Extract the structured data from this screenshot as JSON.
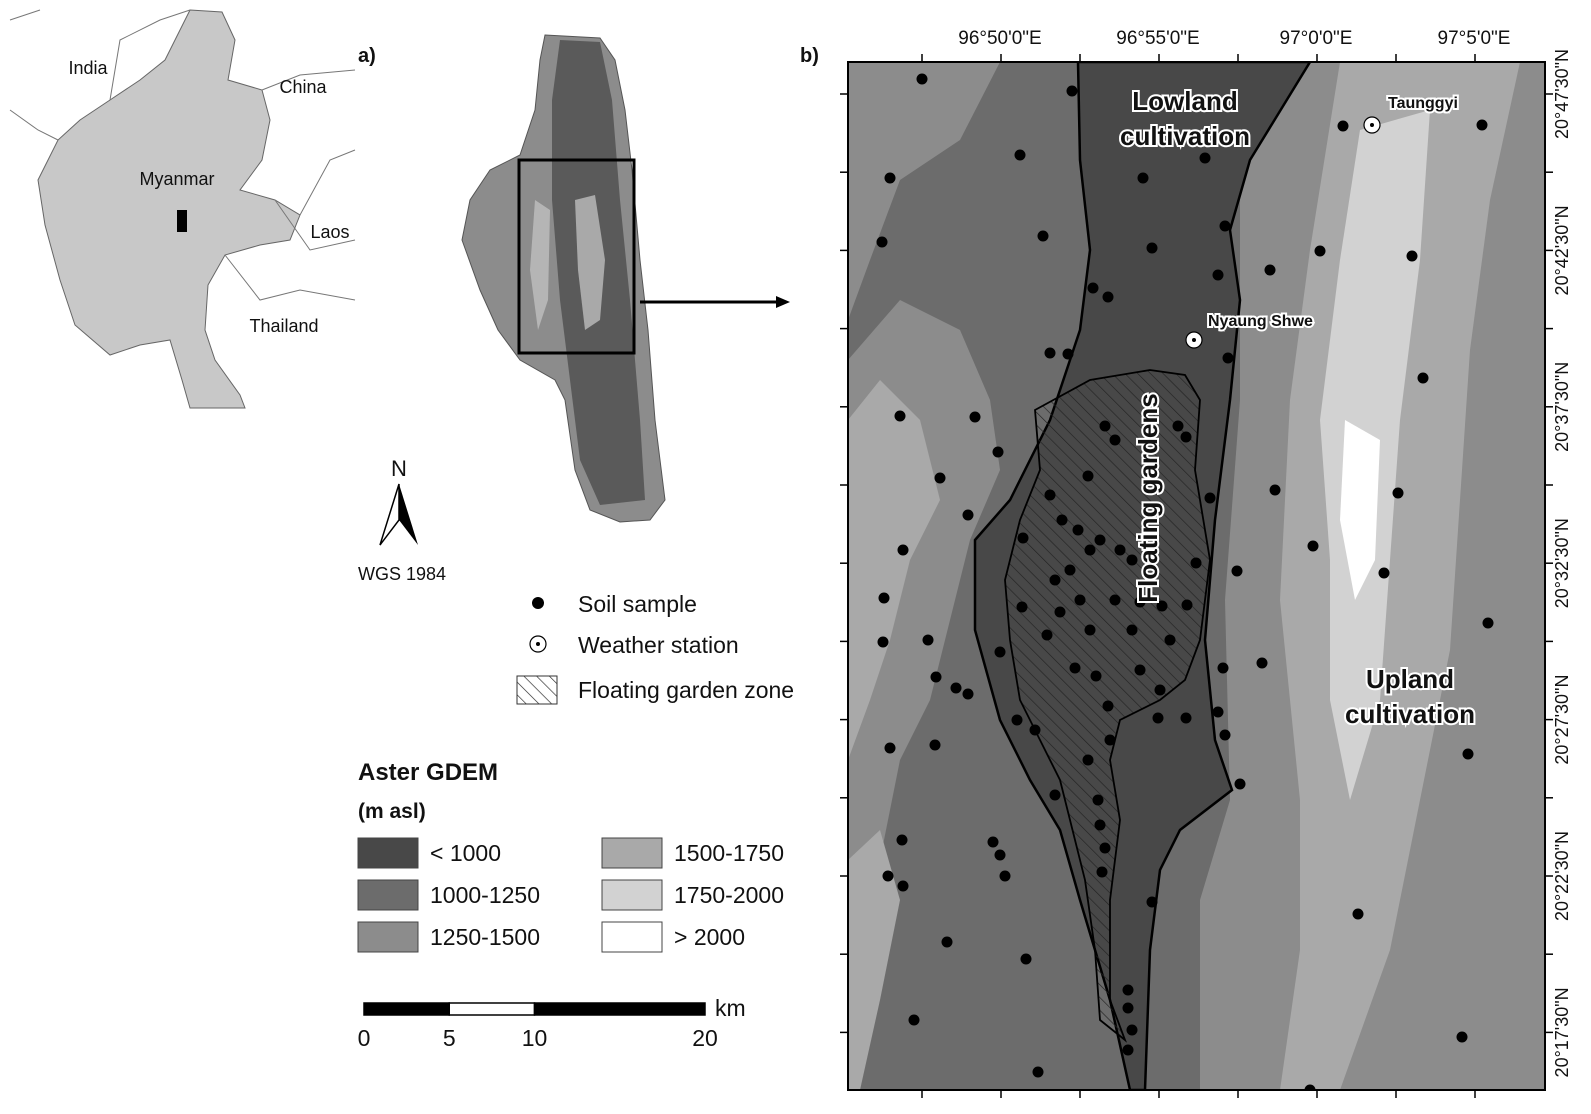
{
  "inset": {
    "labels": [
      "India",
      "China",
      "Myanmar",
      "Laos",
      "Thailand"
    ]
  },
  "panel_a": {
    "label": "a)",
    "north": "N",
    "datum": "WGS 1984"
  },
  "legend": {
    "symbols": [
      "Soil sample",
      "Weather station",
      "Floating garden zone"
    ],
    "elevation_title": "Aster GDEM",
    "elevation_unit": "(m asl)",
    "classes": [
      {
        "label": "< 1000",
        "color": "#484848"
      },
      {
        "label": "1000-1250",
        "color": "#6c6c6c"
      },
      {
        "label": "1250-1500",
        "color": "#8c8c8c"
      },
      {
        "label": "1500-1750",
        "color": "#a9a9a9"
      },
      {
        "label": "1750-2000",
        "color": "#d2d2d2"
      },
      {
        "label": "> 2000",
        "color": "#ffffff"
      }
    ]
  },
  "scale_bar": {
    "unit": "km",
    "ticks": [
      0,
      5,
      10,
      20
    ]
  },
  "panel_b": {
    "label": "b)",
    "lon_ticks": [
      "96°50'0\"E",
      "96°55'0\"E",
      "97°0'0\"E",
      "97°5'0\"E"
    ],
    "lat_ticks": [
      "20°47'30\"N",
      "20°42'30\"N",
      "20°37'30\"N",
      "20°32'30\"N",
      "20°27'30\"N",
      "20°22'30\"N",
      "20°17'30\"N"
    ],
    "zones": [
      [
        "Lowland",
        "cultivation"
      ],
      [
        "Floating gardens"
      ],
      [
        "Upland",
        "cultivation"
      ]
    ],
    "stations": [
      "Taunggyi",
      "Nyaung Shwe"
    ]
  }
}
